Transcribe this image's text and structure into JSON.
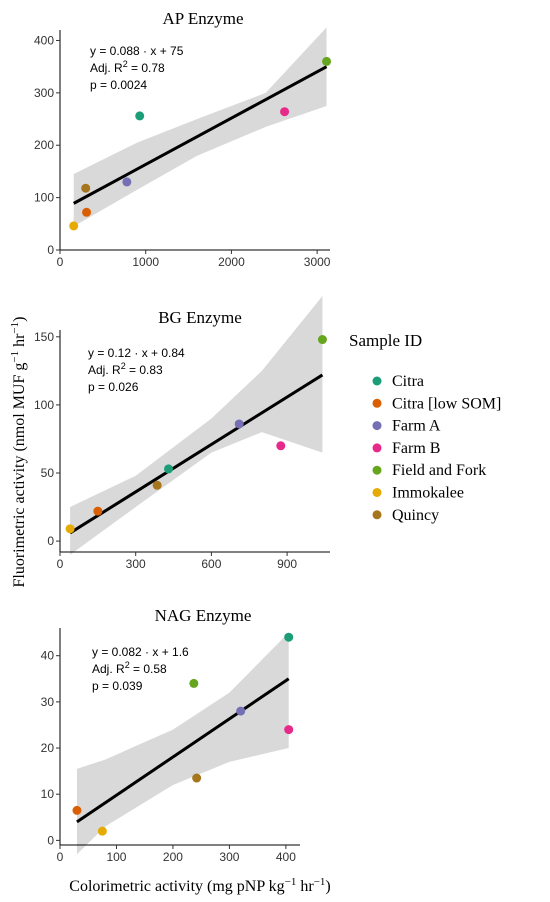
{
  "axes_labels": {
    "x": "Colorimetric activity (mg pNP kg",
    "x_exp1": "−1",
    "x_mid": " hr",
    "x_exp2": "−1",
    "x_end": ")",
    "y": "Fluorimetric activity (nmol MUF g",
    "y_exp1": "−1",
    "y_mid": " hr",
    "y_exp2": "−1",
    "y_end": ")"
  },
  "legend": {
    "title": "Sample ID",
    "items": [
      {
        "label": "Citra",
        "color": "#1b9e77"
      },
      {
        "label": "Citra [low SOM]",
        "color": "#d95f02"
      },
      {
        "label": "Farm A",
        "color": "#7570b3"
      },
      {
        "label": "Farm B",
        "color": "#e7298a"
      },
      {
        "label": "Field and Fork",
        "color": "#66a61e"
      },
      {
        "label": "Immokalee",
        "color": "#e6ab02"
      },
      {
        "label": "Quincy",
        "color": "#a6761d"
      }
    ]
  },
  "chart_data": [
    {
      "type": "scatter",
      "title": "AP Enzyme",
      "xlim": [
        0,
        3150
      ],
      "ylim": [
        0,
        420
      ],
      "xticks": [
        0,
        1000,
        2000,
        3000
      ],
      "yticks": [
        0,
        100,
        200,
        300,
        400
      ],
      "annotation": {
        "eq": "y = 0.088 · x + 75",
        "r2_pre": "Adj.  R",
        "r2_sup": "2",
        "r2_post": " = 0.78",
        "p": "p = 0.0024"
      },
      "fit": {
        "x0": 160,
        "x1": 3110,
        "y0": 89,
        "y1": 350
      },
      "band": {
        "upper": [
          [
            160,
            145
          ],
          [
            900,
            205
          ],
          [
            1600,
            250
          ],
          [
            2400,
            300
          ],
          [
            3110,
            425
          ]
        ],
        "lower": [
          [
            160,
            45
          ],
          [
            900,
            115
          ],
          [
            1600,
            180
          ],
          [
            2400,
            235
          ],
          [
            3110,
            275
          ]
        ]
      },
      "points": [
        {
          "series": "Citra",
          "x": 930,
          "y": 256
        },
        {
          "series": "Citra [low SOM]",
          "x": 310,
          "y": 72
        },
        {
          "series": "Farm A",
          "x": 780,
          "y": 130
        },
        {
          "series": "Farm B",
          "x": 2620,
          "y": 264
        },
        {
          "series": "Field and Fork",
          "x": 3110,
          "y": 360
        },
        {
          "series": "Immokalee",
          "x": 160,
          "y": 46
        },
        {
          "series": "Quincy",
          "x": 300,
          "y": 118
        }
      ]
    },
    {
      "type": "scatter",
      "title": "BG Enzyme",
      "xlim": [
        0,
        1070
      ],
      "ylim": [
        -8,
        155
      ],
      "xticks": [
        0,
        300,
        600,
        900
      ],
      "yticks": [
        0,
        50,
        100,
        150
      ],
      "annotation": {
        "eq": "y = 0.12 · x + 0.84",
        "r2_pre": "Adj.  R",
        "r2_sup": "2",
        "r2_post": " = 0.83",
        "p": "p = 0.026"
      },
      "fit": {
        "x0": 40,
        "x1": 1040,
        "y0": 6,
        "y1": 122
      },
      "band": {
        "upper": [
          [
            40,
            25
          ],
          [
            300,
            48
          ],
          [
            600,
            90
          ],
          [
            800,
            125
          ],
          [
            1040,
            180
          ]
        ],
        "lower": [
          [
            40,
            -10
          ],
          [
            300,
            25
          ],
          [
            600,
            65
          ],
          [
            800,
            80
          ],
          [
            1040,
            65
          ]
        ]
      },
      "points": [
        {
          "series": "Citra",
          "x": 430,
          "y": 53
        },
        {
          "series": "Citra [low SOM]",
          "x": 150,
          "y": 22
        },
        {
          "series": "Farm A",
          "x": 710,
          "y": 86
        },
        {
          "series": "Farm B",
          "x": 875,
          "y": 70
        },
        {
          "series": "Field and Fork",
          "x": 1040,
          "y": 148
        },
        {
          "series": "Immokalee",
          "x": 40,
          "y": 9
        },
        {
          "series": "Quincy",
          "x": 385,
          "y": 41
        }
      ]
    },
    {
      "type": "scatter",
      "title": "NAG Enzyme",
      "xlim": [
        0,
        425
      ],
      "ylim": [
        -1,
        46
      ],
      "xticks": [
        0,
        100,
        200,
        300,
        400
      ],
      "yticks": [
        0,
        10,
        20,
        30,
        40
      ],
      "annotation": {
        "eq": "y = 0.082 · x + 1.6",
        "r2_pre": "Adj.  R",
        "r2_sup": "2",
        "r2_post": " = 0.58",
        "p": "p = 0.039"
      },
      "fit": {
        "x0": 30,
        "x1": 405,
        "y0": 4,
        "y1": 35
      },
      "band": {
        "upper": [
          [
            30,
            15.5
          ],
          [
            80,
            17.5
          ],
          [
            200,
            24
          ],
          [
            300,
            32
          ],
          [
            405,
            45
          ]
        ],
        "lower": [
          [
            30,
            -3
          ],
          [
            80,
            3
          ],
          [
            200,
            12
          ],
          [
            300,
            17
          ],
          [
            405,
            20
          ]
        ]
      },
      "points": [
        {
          "series": "Citra",
          "x": 405,
          "y": 44
        },
        {
          "series": "Citra [low SOM]",
          "x": 30,
          "y": 6.5
        },
        {
          "series": "Farm A",
          "x": 320,
          "y": 28
        },
        {
          "series": "Farm B",
          "x": 405,
          "y": 24
        },
        {
          "series": "Field and Fork",
          "x": 237,
          "y": 34
        },
        {
          "series": "Immokalee",
          "x": 75,
          "y": 2
        },
        {
          "series": "Quincy",
          "x": 242,
          "y": 13.5
        }
      ]
    }
  ]
}
